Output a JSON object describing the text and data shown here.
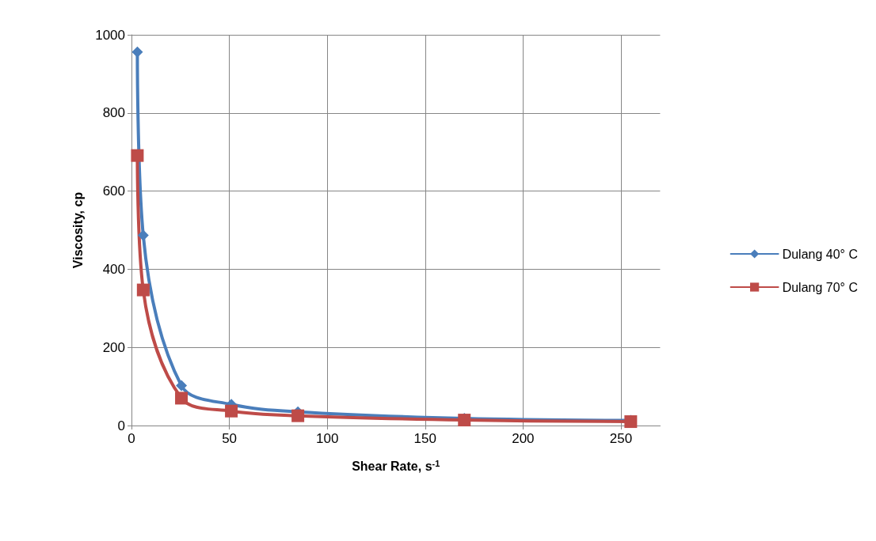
{
  "chart_data": {
    "type": "line",
    "xlabel": "Shear Rate, s$^{-1}$",
    "ylabel": "Viscosity, cp",
    "x": [
      3,
      6,
      25.5,
      51,
      85,
      170,
      255
    ],
    "series": [
      {
        "name": "Dulang 40° C",
        "color": "#4a7ebb",
        "marker": "diamond",
        "values": [
          956,
          487,
          102,
          54,
          35,
          18,
          13
        ]
      },
      {
        "name": "Dulang 70° C",
        "color": "#be4b48",
        "marker": "square",
        "values": [
          691,
          347,
          70,
          37,
          25,
          14,
          10
        ]
      }
    ],
    "xlim": [
      0,
      270
    ],
    "xticks": [
      0,
      50,
      100,
      150,
      200,
      250
    ],
    "ylim": [
      0,
      1000
    ],
    "yticks": [
      0,
      200,
      400,
      600,
      800,
      1000
    ],
    "grid": true,
    "legend": "right",
    "line_style": "solid"
  }
}
